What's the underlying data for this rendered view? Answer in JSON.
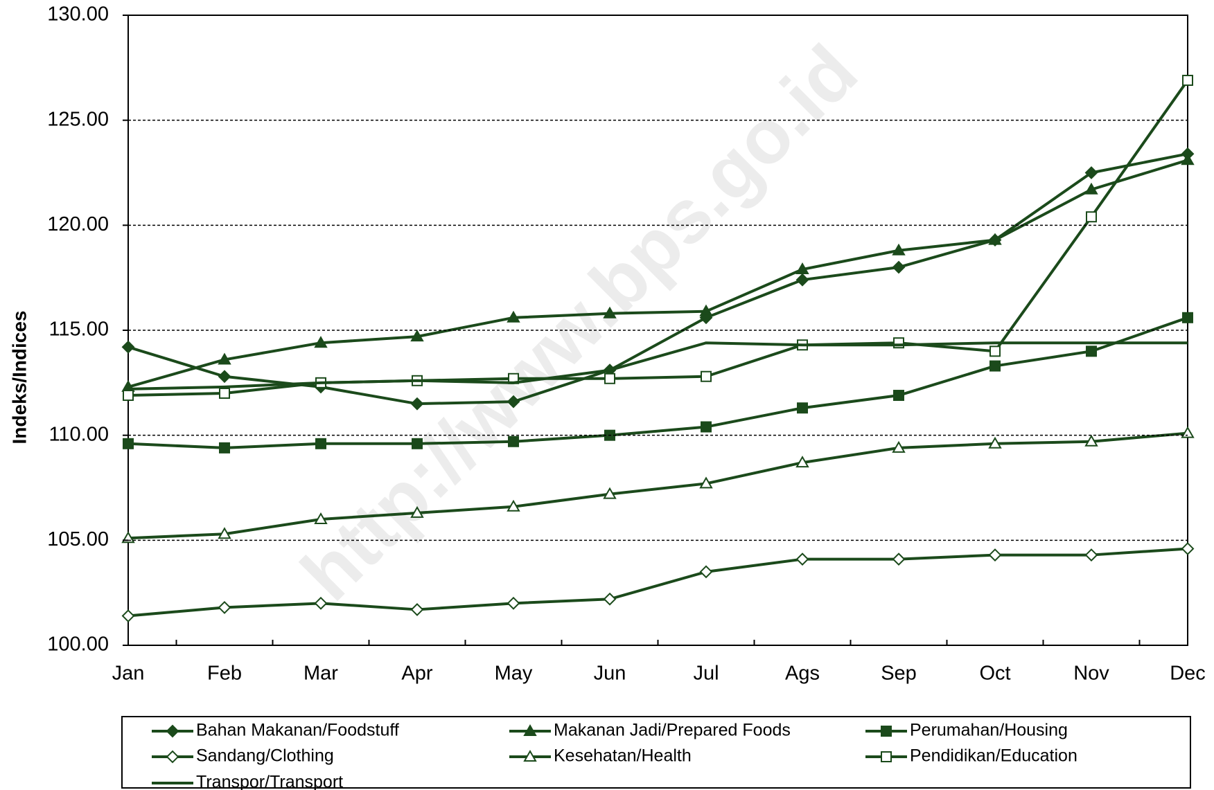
{
  "chart_data": {
    "type": "line",
    "y_label": "Indeks/Indices",
    "watermark": "http://www.bps.go.id",
    "categories": [
      "Jan",
      "Feb",
      "Mar",
      "Apr",
      "May",
      "Jun",
      "Jul",
      "Ags",
      "Sep",
      "Oct",
      "Nov",
      "Dec"
    ],
    "ylim": [
      100,
      130
    ],
    "yticks": [
      {
        "value": 100,
        "label": "100.00"
      },
      {
        "value": 105,
        "label": "105.00"
      },
      {
        "value": 110,
        "label": "110.00"
      },
      {
        "value": 115,
        "label": "115.00"
      },
      {
        "value": 120,
        "label": "120.00"
      },
      {
        "value": 125,
        "label": "125.00"
      },
      {
        "value": 130,
        "label": "130.00"
      }
    ],
    "grid": true,
    "series": [
      {
        "name": "Bahan Makanan/Foodstuff",
        "color": "#1b4a1b",
        "marker": "diamond",
        "filled": true,
        "values": [
          114.2,
          112.8,
          112.3,
          111.5,
          111.6,
          113.1,
          115.6,
          117.4,
          118.0,
          119.3,
          122.5,
          123.4
        ]
      },
      {
        "name": "Makanan Jadi/Prepared Foods",
        "color": "#1b4a1b",
        "marker": "triangle",
        "filled": true,
        "values": [
          112.3,
          113.6,
          114.4,
          114.7,
          115.6,
          115.8,
          115.9,
          117.9,
          118.8,
          119.3,
          121.7,
          123.1
        ]
      },
      {
        "name": "Perumahan/Housing",
        "color": "#1b4a1b",
        "marker": "square",
        "filled": true,
        "values": [
          109.6,
          109.4,
          109.6,
          109.6,
          109.7,
          110.0,
          110.4,
          111.3,
          111.9,
          113.3,
          114.0,
          115.6
        ]
      },
      {
        "name": "Sandang/Clothing",
        "color": "#1b4a1b",
        "marker": "diamond",
        "filled": false,
        "values": [
          101.4,
          101.8,
          102.0,
          101.7,
          102.0,
          102.2,
          103.5,
          104.1,
          104.1,
          104.3,
          104.3,
          104.6
        ]
      },
      {
        "name": "Kesehatan/Health",
        "color": "#1b4a1b",
        "marker": "triangle",
        "filled": false,
        "values": [
          105.1,
          105.3,
          106.0,
          106.3,
          106.6,
          107.2,
          107.7,
          108.7,
          109.4,
          109.6,
          109.7,
          110.1
        ]
      },
      {
        "name": "Pendidikan/Education",
        "color": "#1b4a1b",
        "marker": "square",
        "filled": false,
        "values": [
          111.9,
          112.0,
          112.5,
          112.6,
          112.7,
          112.7,
          112.8,
          114.3,
          114.4,
          114.0,
          120.4,
          126.9
        ]
      },
      {
        "name": "Transpor/Transport",
        "color": "#1b4a1b",
        "marker": "none",
        "filled": false,
        "values": [
          112.2,
          112.3,
          112.5,
          112.6,
          112.5,
          113.1,
          114.4,
          114.3,
          114.3,
          114.4,
          114.4,
          114.4
        ]
      }
    ]
  }
}
